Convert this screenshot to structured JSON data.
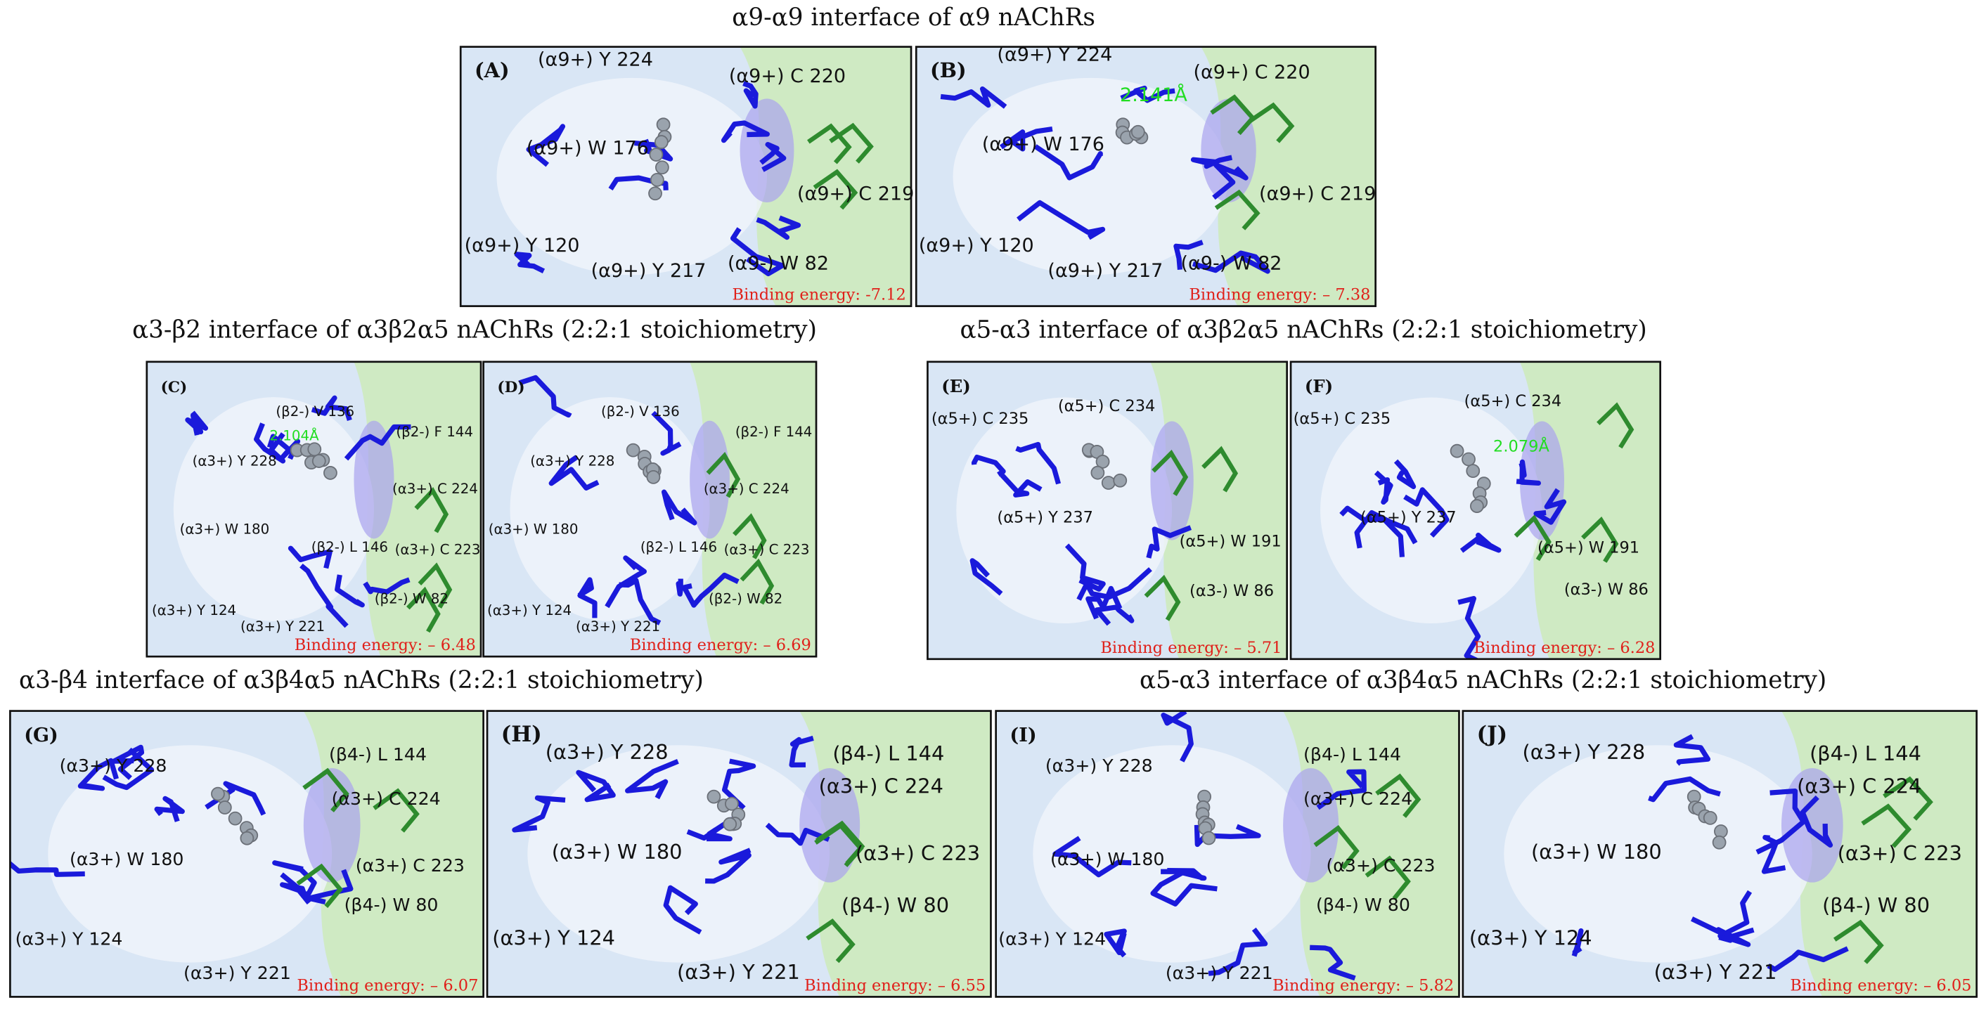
{
  "figure": {
    "groups": [
      {
        "title": "α9-α9 interface of α9 nAChRs",
        "panels": [
          {
            "label": "(A)",
            "residues": [
              "(α9+) Y 224",
              "(α9+) C 220",
              "(α9+) W 176",
              "(α9+) C 219",
              "(α9+) Y 120",
              "(α9+) Y 217",
              "(α9-) W 82"
            ],
            "energy": "Binding energy: -7.12"
          },
          {
            "label": "(B)",
            "residues": [
              "(α9+) Y 224",
              "(α9+) C 220",
              "(α9+) W 176",
              "(α9+) C 219",
              "(α9+) Y 120",
              "(α9+) Y 217",
              "(α9-) W 82"
            ],
            "distance": "2.141Å",
            "energy": "Binding energy: – 7.38"
          }
        ]
      },
      {
        "title": "α3-β2 interface of α3β2α5 nAChRs (2:2:1 stoichiometry)",
        "panels": [
          {
            "label": "(C)",
            "residues": [
              "(β2-) V 136",
              "(β2-) F 144",
              "(α3+) Y 228",
              "(α3+) C 224",
              "(α3+) W 180",
              "(β2-) L 146",
              "(α3+) C 223",
              "(β2-) W 82",
              "(α3+) Y 124",
              "(α3+) Y 221"
            ],
            "distance": "2.104Å",
            "energy": "Binding energy: – 6.48"
          },
          {
            "label": "(D)",
            "residues": [
              "(β2-) V 136",
              "(β2-) F 144",
              "(α3+) Y 228",
              "(α3+) C 224",
              "(α3+) W 180",
              "(β2-) L 146",
              "(α3+) C 223",
              "(β2-) W 82",
              "(α3+) Y 124",
              "(α3+) Y 221"
            ],
            "energy": "Binding energy: – 6.69"
          }
        ]
      },
      {
        "title": "α5-α3 interface of α3β2α5 nAChRs (2:2:1 stoichiometry)",
        "panels": [
          {
            "label": "(E)",
            "residues": [
              "(α5+) C 235",
              "(α5+) C 234",
              "(α5+) Y 237",
              "(α5+) W 191",
              "(α3-) W 86"
            ],
            "energy": "Binding energy: – 5.71"
          },
          {
            "label": "(F)",
            "residues": [
              "(α5+) C 235",
              "(α5+) C 234",
              "(α5+) Y 237",
              "(α5+) W 191",
              "(α3-) W 86"
            ],
            "distance": "2.079Å",
            "energy": "Binding energy: – 6.28"
          }
        ]
      },
      {
        "title": "α3-β4 interface of α3β4α5 nAChRs (2:2:1 stoichiometry)",
        "panels": [
          {
            "label": "(G)",
            "residues": [
              "(α3+) Y 228",
              "(β4-) L 144",
              "(α3+) C 224",
              "(α3+) W 180",
              "(α3+) C 223",
              "(β4-) W 80",
              "(α3+) Y 124",
              "(α3+) Y 221"
            ],
            "energy": "Binding energy: – 6.07"
          },
          {
            "label": "(H)",
            "residues": [
              "(α3+) Y 228",
              "(β4-) L 144",
              "(α3+) C 224",
              "(α3+) W 180",
              "(α3+) C 223",
              "(β4-) W 80",
              "(α3+) Y 124",
              "(α3+) Y 221"
            ],
            "energy": "Binding energy: – 6.55"
          }
        ]
      },
      {
        "title": "α5-α3 interface of α3β4α5 nAChRs (2:2:1 stoichiometry)",
        "panels": [
          {
            "label": "(I)",
            "residues": [
              "(α3+) Y 228",
              "(β4-) L 144",
              "(α3+) C 224",
              "(α3+) W 180",
              "(α3+) C 223",
              "(β4-) W 80",
              "(α3+) Y 124",
              "(α3+) Y 221"
            ],
            "energy": "Binding energy: – 5.82"
          },
          {
            "label": "(J)",
            "residues": [
              "(α3+) Y 228",
              "(β4-) L 144",
              "(α3+) C 224",
              "(α3+) W 180",
              "(α3+) C 223",
              "(β4-) W 80",
              "(α3+) Y 124",
              "(α3+) Y 221"
            ],
            "energy": "Binding energy: – 6.05"
          }
        ]
      }
    ]
  }
}
